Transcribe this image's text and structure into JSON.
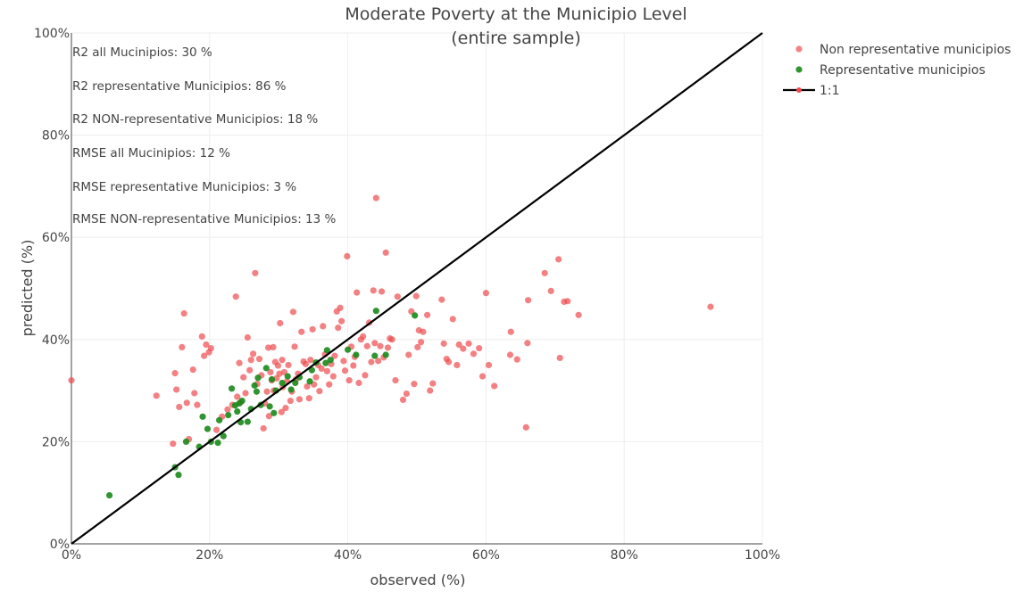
{
  "chart_data": {
    "type": "scatter",
    "title": [
      "Moderate Poverty at the Municipio Level",
      "(entire sample)"
    ],
    "xlabel": "observed (%)",
    "ylabel": "predicted (%)",
    "xlim": [
      0,
      100
    ],
    "ylim": [
      0,
      100
    ],
    "xticks": [
      0,
      20,
      40,
      60,
      80,
      100
    ],
    "yticks": [
      0,
      20,
      40,
      60,
      80,
      100
    ],
    "xtick_labels": [
      "0%",
      "20%",
      "40%",
      "60%",
      "80%",
      "100%"
    ],
    "ytick_labels": [
      "0%",
      "20%",
      "40%",
      "60%",
      "80%",
      "100%"
    ],
    "grid": true,
    "legend_position": "top-right",
    "annotations": [
      "R2 all Mucinipios: 30 %",
      "R2 representative Municipios: 86 %",
      "R2 NON-representative Municipios: 18 %",
      "RMSE all Mucinipios: 12 %",
      "RMSE representative Municipios: 3 %",
      "RMSE NON-representative Municipios: 13 %"
    ],
    "series": [
      {
        "name": "Non representative municipios",
        "mode": "markers",
        "color": "#ee4b4f",
        "points": [
          [
            0.0,
            32.0
          ],
          [
            12.3,
            29.0
          ],
          [
            14.7,
            19.6
          ],
          [
            15.0,
            33.4
          ],
          [
            15.2,
            30.2
          ],
          [
            15.6,
            26.8
          ],
          [
            16.0,
            38.5
          ],
          [
            16.3,
            45.1
          ],
          [
            16.7,
            27.6
          ],
          [
            17.0,
            20.5
          ],
          [
            17.6,
            34.1
          ],
          [
            17.8,
            29.5
          ],
          [
            18.2,
            27.2
          ],
          [
            18.9,
            40.6
          ],
          [
            19.2,
            36.8
          ],
          [
            19.5,
            39.0
          ],
          [
            19.9,
            37.5
          ],
          [
            20.2,
            38.3
          ],
          [
            21.0,
            22.3
          ],
          [
            21.8,
            24.9
          ],
          [
            22.6,
            26.3
          ],
          [
            23.3,
            27.2
          ],
          [
            23.8,
            48.4
          ],
          [
            24.0,
            28.8
          ],
          [
            24.3,
            35.4
          ],
          [
            24.5,
            27.7
          ],
          [
            24.9,
            32.6
          ],
          [
            25.2,
            29.5
          ],
          [
            25.5,
            40.4
          ],
          [
            25.8,
            34.0
          ],
          [
            26.0,
            36.0
          ],
          [
            26.3,
            37.2
          ],
          [
            26.6,
            53.0
          ],
          [
            26.9,
            31.3
          ],
          [
            27.2,
            36.2
          ],
          [
            27.5,
            33.0
          ],
          [
            27.8,
            22.6
          ],
          [
            28.0,
            27.5
          ],
          [
            28.3,
            29.8
          ],
          [
            28.5,
            38.4
          ],
          [
            28.6,
            25.0
          ],
          [
            28.8,
            33.6
          ],
          [
            29.0,
            32.0
          ],
          [
            29.2,
            38.5
          ],
          [
            29.3,
            30.0
          ],
          [
            29.5,
            35.6
          ],
          [
            29.7,
            32.4
          ],
          [
            29.9,
            34.9
          ],
          [
            30.1,
            33.3
          ],
          [
            30.2,
            43.2
          ],
          [
            30.4,
            25.8
          ],
          [
            30.5,
            36.0
          ],
          [
            30.6,
            30.7
          ],
          [
            30.8,
            33.6
          ],
          [
            31.0,
            26.6
          ],
          [
            31.2,
            31.8
          ],
          [
            31.4,
            35.0
          ],
          [
            31.7,
            28.0
          ],
          [
            31.9,
            29.8
          ],
          [
            32.1,
            45.4
          ],
          [
            32.3,
            38.6
          ],
          [
            32.5,
            32.2
          ],
          [
            32.8,
            33.3
          ],
          [
            33.0,
            28.3
          ],
          [
            33.3,
            41.5
          ],
          [
            33.6,
            35.7
          ],
          [
            33.9,
            35.2
          ],
          [
            34.1,
            30.8
          ],
          [
            34.4,
            28.5
          ],
          [
            34.6,
            36.0
          ],
          [
            34.9,
            42.0
          ],
          [
            35.1,
            31.2
          ],
          [
            35.4,
            32.6
          ],
          [
            35.7,
            35.0
          ],
          [
            35.9,
            29.9
          ],
          [
            36.2,
            34.3
          ],
          [
            36.4,
            42.6
          ],
          [
            36.7,
            37.1
          ],
          [
            37.0,
            33.8
          ],
          [
            37.3,
            31.2
          ],
          [
            37.6,
            35.2
          ],
          [
            37.9,
            32.8
          ],
          [
            38.1,
            36.8
          ],
          [
            38.4,
            45.5
          ],
          [
            38.6,
            42.3
          ],
          [
            38.9,
            46.2
          ],
          [
            39.1,
            43.6
          ],
          [
            39.4,
            35.8
          ],
          [
            39.6,
            33.9
          ],
          [
            39.9,
            56.3
          ],
          [
            40.2,
            32.0
          ],
          [
            40.5,
            38.6
          ],
          [
            40.8,
            34.9
          ],
          [
            41.0,
            36.6
          ],
          [
            41.3,
            49.2
          ],
          [
            41.6,
            31.5
          ],
          [
            41.9,
            40.0
          ],
          [
            42.2,
            40.6
          ],
          [
            42.5,
            33.0
          ],
          [
            42.8,
            38.7
          ],
          [
            43.1,
            43.3
          ],
          [
            43.4,
            35.6
          ],
          [
            43.7,
            49.6
          ],
          [
            43.9,
            39.3
          ],
          [
            44.1,
            67.7
          ],
          [
            44.4,
            35.8
          ],
          [
            44.7,
            38.7
          ],
          [
            44.9,
            49.4
          ],
          [
            45.2,
            36.5
          ],
          [
            45.5,
            57.0
          ],
          [
            45.8,
            38.4
          ],
          [
            46.1,
            40.2
          ],
          [
            46.4,
            40.0
          ],
          [
            46.9,
            32.0
          ],
          [
            47.2,
            48.4
          ],
          [
            48.0,
            28.2
          ],
          [
            48.5,
            29.4
          ],
          [
            48.8,
            37.0
          ],
          [
            49.2,
            45.5
          ],
          [
            49.6,
            31.3
          ],
          [
            49.9,
            48.5
          ],
          [
            50.1,
            38.5
          ],
          [
            50.3,
            41.8
          ],
          [
            50.6,
            39.5
          ],
          [
            50.9,
            41.5
          ],
          [
            51.5,
            44.8
          ],
          [
            51.9,
            30.0
          ],
          [
            52.3,
            31.4
          ],
          [
            53.6,
            47.8
          ],
          [
            53.9,
            39.2
          ],
          [
            54.3,
            36.2
          ],
          [
            54.6,
            35.6
          ],
          [
            55.2,
            44.0
          ],
          [
            55.8,
            35.0
          ],
          [
            56.1,
            39.0
          ],
          [
            56.7,
            38.2
          ],
          [
            57.5,
            39.2
          ],
          [
            58.2,
            37.2
          ],
          [
            59.0,
            38.3
          ],
          [
            59.5,
            32.8
          ],
          [
            60.0,
            49.1
          ],
          [
            60.4,
            35.0
          ],
          [
            61.2,
            30.9
          ],
          [
            63.5,
            37.0
          ],
          [
            63.6,
            41.5
          ],
          [
            64.5,
            36.1
          ],
          [
            65.8,
            22.8
          ],
          [
            66.0,
            39.3
          ],
          [
            66.1,
            47.7
          ],
          [
            68.5,
            53.0
          ],
          [
            69.4,
            49.5
          ],
          [
            70.5,
            55.7
          ],
          [
            70.7,
            36.4
          ],
          [
            71.3,
            47.4
          ],
          [
            71.8,
            47.5
          ],
          [
            73.4,
            44.8
          ],
          [
            92.5,
            46.4
          ]
        ]
      },
      {
        "name": "Representative municipios",
        "mode": "markers",
        "color": "#1a8a1a",
        "points": [
          [
            5.5,
            9.5
          ],
          [
            15.0,
            15.0
          ],
          [
            15.5,
            13.5
          ],
          [
            16.6,
            20.0
          ],
          [
            18.5,
            19.0
          ],
          [
            19.0,
            24.9
          ],
          [
            19.7,
            22.5
          ],
          [
            20.2,
            20.0
          ],
          [
            21.2,
            19.8
          ],
          [
            21.4,
            24.2
          ],
          [
            22.0,
            21.1
          ],
          [
            22.7,
            25.2
          ],
          [
            23.2,
            30.4
          ],
          [
            23.7,
            27.1
          ],
          [
            24.0,
            25.9
          ],
          [
            24.3,
            27.5
          ],
          [
            24.5,
            23.8
          ],
          [
            24.7,
            28.0
          ],
          [
            25.5,
            23.9
          ],
          [
            26.0,
            26.4
          ],
          [
            26.5,
            31.0
          ],
          [
            26.8,
            29.8
          ],
          [
            27.0,
            32.5
          ],
          [
            27.4,
            27.2
          ],
          [
            28.2,
            34.4
          ],
          [
            28.7,
            26.9
          ],
          [
            29.0,
            32.2
          ],
          [
            29.3,
            25.6
          ],
          [
            29.6,
            30.0
          ],
          [
            30.5,
            31.5
          ],
          [
            31.3,
            32.8
          ],
          [
            31.8,
            30.2
          ],
          [
            32.4,
            31.5
          ],
          [
            33.0,
            32.6
          ],
          [
            34.5,
            31.8
          ],
          [
            34.8,
            34.0
          ],
          [
            35.4,
            35.5
          ],
          [
            36.8,
            35.4
          ],
          [
            37.0,
            37.9
          ],
          [
            37.5,
            36.0
          ],
          [
            40.0,
            38.0
          ],
          [
            41.2,
            37.0
          ],
          [
            43.9,
            36.8
          ],
          [
            44.1,
            45.6
          ],
          [
            45.5,
            37.0
          ],
          [
            49.7,
            44.7
          ]
        ]
      },
      {
        "name": "1:1",
        "mode": "lines+markers",
        "color": "#000000",
        "points": [
          [
            0,
            0
          ],
          [
            100,
            100
          ]
        ]
      }
    ]
  }
}
